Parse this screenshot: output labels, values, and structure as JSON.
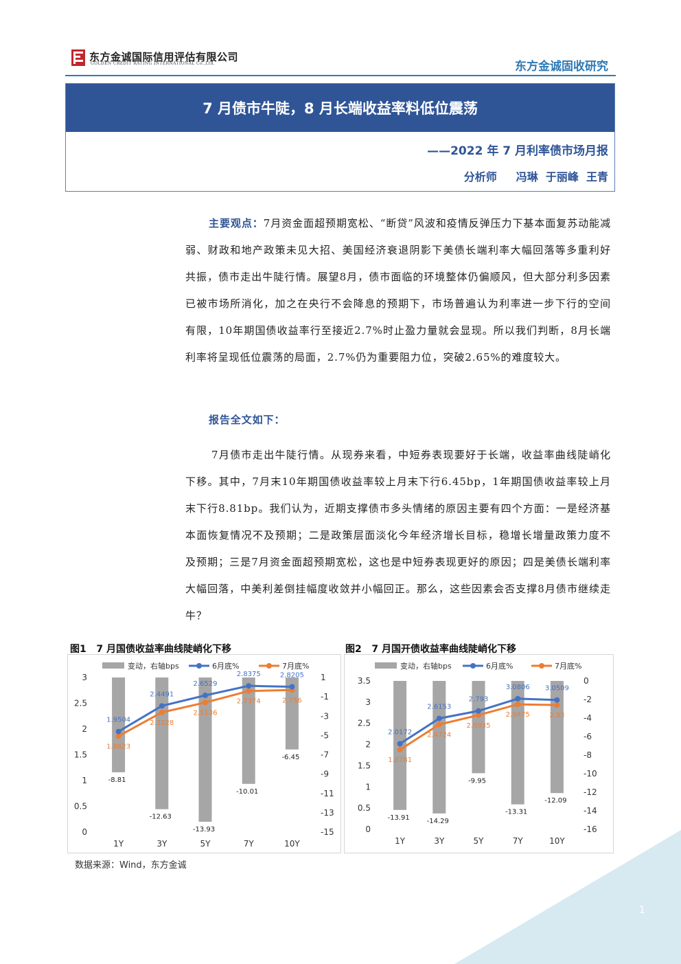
{
  "header": {
    "company_cn": "东方金诚国际信用评估有限公司",
    "company_en": "GOLDEN CREDIT RATING INTERNATIONAL Co.,Ltd.",
    "brand": "东方金诚固收研究"
  },
  "report": {
    "title": "7 月债市牛陡，8 月长端收益率料低位震荡",
    "subtitle": "——2022 年 7 月利率债市场月报",
    "analyst_label": "分析师",
    "analysts": "冯琳  于丽峰  王青"
  },
  "body": {
    "key_points_label": "主要观点：",
    "key_points_text": "7月资金面超预期宽松、“断贷”风波和疫情反弹压力下基本面复苏动能减弱、财政和地产政策未见大招、美国经济衰退阴影下美债长端利率大幅回落等多重利好共振，债市走出牛陡行情。展望8月，债市面临的环境整体仍偏顺风，但大部分利多因素已被市场所消化，加之在央行不会降息的预期下，市场普遍认为利率进一步下行的空间有限，10年期国债收益率行至接近2.7%时止盈力量就会显现。所以我们判断，8月长端利率将呈现低位震荡的局面，2.7%仍为重要阻力位，突破2.65%的难度较大。",
    "fulltext_label": "报告全文如下：",
    "para1": "7月债市走出牛陡行情。从现券来看，中短券表现要好于长端，收益率曲线陡峭化下移。其中，7月末10年期国债收益率较上月末下行6.45bp，1年期国债收益率较上月末下行8.81bp。我们认为，近期支撑债市多头情绪的原因主要有四个方面：一是经济基本面恢复情况不及预期；二是政策层面淡化今年经济增长目标，稳增长增量政策力度不及预期；三是7月资金面超预期宽松，这也是中短券表现更好的原因；四是美债长端利率大幅回落，中美利差倒挂幅度收敛并小幅回正。那么，这些因素会否支撑8月债市继续走牛？"
  },
  "figures": {
    "fig1_title": "图1   7 月国债收益率曲线陡峭化下移",
    "fig2_title": "图2   7 月国开债收益率曲线陡峭化下移",
    "source": "数据来源：Wind，东方金诚"
  },
  "colors": {
    "bar": "#a6a6a6",
    "june": "#4472c4",
    "july": "#ed7d31",
    "title_band": "#2f5597",
    "brand": "#2e79b5"
  },
  "chart_data": [
    {
      "type": "bar",
      "categories": [
        "1Y",
        "3Y",
        "5Y",
        "7Y",
        "10Y"
      ],
      "series": [
        {
          "name": "变动，右轴bps",
          "type": "bar",
          "axis": "right",
          "values": [
            -8.81,
            -12.63,
            -13.93,
            -10.01,
            -6.45
          ]
        },
        {
          "name": "6月底%",
          "type": "line",
          "axis": "left",
          "values": [
            1.9504,
            2.4491,
            2.6529,
            2.8375,
            2.8205
          ]
        },
        {
          "name": "7月底%",
          "type": "line",
          "axis": "left",
          "values": [
            1.8623,
            2.3228,
            2.5136,
            2.7374,
            2.756
          ]
        }
      ],
      "ylim_left": [
        0,
        3
      ],
      "yticks_left": [
        "3",
        "2.5",
        "2",
        "1.5",
        "1",
        "0.5",
        "0"
      ],
      "ylim_right": [
        -15,
        1
      ],
      "yticks_right": [
        "1",
        "-1",
        "-3",
        "-5",
        "-7",
        "-9",
        "-11",
        "-13",
        "-15"
      ],
      "bar_labels": [
        "-8.81",
        "-12.63",
        "-13.93",
        "-10.01",
        "-6.45"
      ],
      "june_labels": [
        "1.9504",
        "2.4491",
        "2.6529",
        "2.8375",
        "2.8205"
      ],
      "july_labels": [
        "1.8623",
        "2.3228",
        "2.5136",
        "2.7374",
        "2.756"
      ],
      "legend": "top"
    },
    {
      "type": "bar",
      "categories": [
        "1Y",
        "3Y",
        "5Y",
        "7Y",
        "10Y"
      ],
      "series": [
        {
          "name": "变动，右轴bps",
          "type": "bar",
          "axis": "right",
          "values": [
            -13.91,
            -14.29,
            -9.95,
            -13.31,
            -12.09
          ]
        },
        {
          "name": "6月底%",
          "type": "line",
          "axis": "left",
          "values": [
            2.0172,
            2.6153,
            2.793,
            3.0806,
            3.0509
          ]
        },
        {
          "name": "7月底%",
          "type": "line",
          "axis": "left",
          "values": [
            1.8781,
            2.4724,
            2.6935,
            2.9475,
            2.93
          ]
        }
      ],
      "ylim_left": [
        0,
        3.5
      ],
      "yticks_left": [
        "3.5",
        "3",
        "2.5",
        "2",
        "1.5",
        "1",
        "0.5",
        "0"
      ],
      "ylim_right": [
        -16,
        0
      ],
      "yticks_right": [
        "0",
        "-2",
        "-4",
        "-6",
        "-8",
        "-10",
        "-12",
        "-14",
        "-16"
      ],
      "bar_labels": [
        "-13.91",
        "-14.29",
        "-9.95",
        "-13.31",
        "-12.09"
      ],
      "june_labels": [
        "2.0172",
        "2.6153",
        "2.793",
        "3.0806",
        "3.0509"
      ],
      "july_labels": [
        "1.8781",
        "2.4724",
        "2.6935",
        "2.9475",
        "2.93"
      ],
      "legend": "top"
    }
  ]
}
